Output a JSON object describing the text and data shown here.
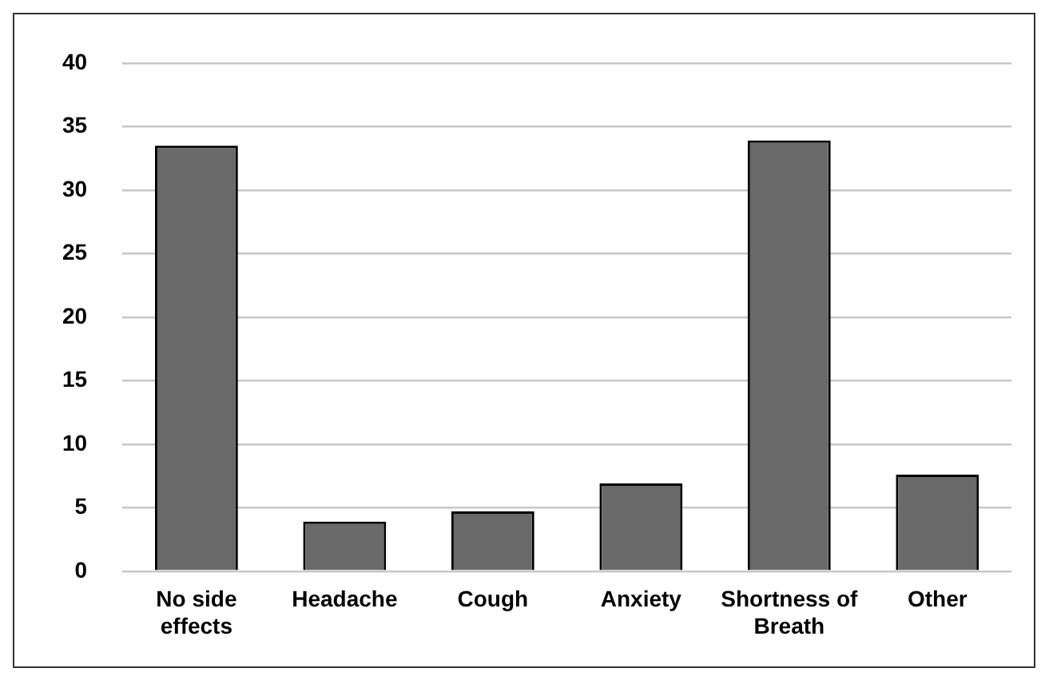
{
  "chart_data": {
    "type": "bar",
    "categories": [
      "No side effects",
      "Headache",
      "Cough",
      "Anxiety",
      "Shortness of Breath",
      "Other"
    ],
    "values": [
      33.5,
      3.9,
      4.7,
      6.9,
      33.9,
      7.6
    ],
    "color": "#696969",
    "ylim": [
      0,
      40
    ],
    "yticks": [
      0,
      5,
      10,
      15,
      20,
      25,
      30,
      35,
      40
    ],
    "grid": "y",
    "legend": false
  }
}
